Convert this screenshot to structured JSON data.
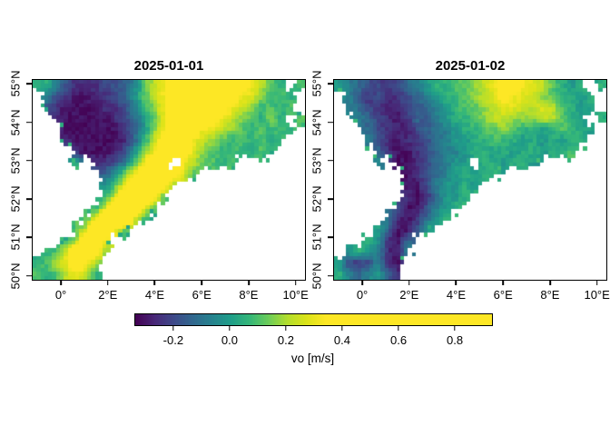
{
  "chart_data": {
    "type": "heatmap",
    "description": "Two daily raster maps of northward ocean current velocity over the southern North Sea with a shared viridis colorbar. Grid rows are strings, one char per cell, top row = 55.1N, left col = -1.2E; '.' = land / no data; letters map to m/s values via value_map.",
    "panels": [
      {
        "title": "2025-01-01",
        "grid_rows": [
          "ggecbbbccdehjlnnnnnnnmljhg.h",
          ".ecbaabbcdfhjlnnnnnnmlkighg.",
          ".cbaaaabbcegilnnnnnmljighgh.",
          "..baaaaabcdfhkmnnnmljihgig.h",
          "...aaaaaabdfilnnmlkjihghghg.",
          "...baaaaabdgjmnnljihghghgg..",
          "....baaabcfilnnmkihghgghg...",
          "....g.bbcehknn.ljhhgh.......",
          ".......dfilnnnmkh...........",
          ".......fhknnnmi.............",
          ".......gjnnnmh..............",
          "......gjnnnlh...............",
          ".....hknnnkg................",
          "....hjnnlh..................",
          "...ginnk....................",
          ".ghknnmi....................",
          "ghjlnli.....................",
          "hghjljg....................."
        ]
      },
      {
        "title": "2025-01-02",
        "grid_rows": [
          "fedccbcdefgghhijlmmlkjhgfg.g",
          ".edbcbbcdefgghijkmlkjihggfg.",
          ".edcbabccdefghhijkkjjkjhgfg.",
          "..edcbabdcefgghijjiiijjhgf.g",
          "...dcbbacddefgghhihggfghggf.",
          "...ecbabbcdeffgghggfgfgfgg..",
          "....dbaabcdeefggfgfggfggh...",
          "....f.aabcdeff.ggfggf.......",
          ".......abcdefgfgg...........",
          ".......aaceffgf.............",
          ".......babdffg..............",
          "......caacefg...............",
          ".....ebabdfg................",
          "....fdaacf..................",
          "...gfbad....................",
          ".fgfebae....................",
          "fcbceba.....................",
          "gedefdb....................."
        ]
      }
    ],
    "value_map": {
      "a": -0.31,
      "b": -0.25,
      "c": -0.19,
      "d": -0.13,
      "e": -0.07,
      "f": -0.01,
      "g": 0.05,
      "h": 0.11,
      "i": 0.17,
      "j": 0.23,
      "k": 0.28,
      "l": 0.32,
      "m": 0.45,
      "n": 0.75
    },
    "no_data_char": ".",
    "x": {
      "tick_labels": [
        "0°",
        "2°E",
        "4°E",
        "6°E",
        "8°E",
        "10°E"
      ],
      "values": [
        0,
        2,
        4,
        6,
        8,
        10
      ],
      "range": [
        -1.2,
        10.4
      ]
    },
    "y": {
      "tick_labels": [
        "50°N",
        "51°N",
        "52°N",
        "53°N",
        "54°N",
        "55°N"
      ],
      "values": [
        50,
        51,
        52,
        53,
        54,
        55
      ],
      "range": [
        49.9,
        55.1
      ]
    },
    "colorbar": {
      "label": "vo [m/s]",
      "ticks": [
        -0.2,
        0.0,
        0.2,
        0.4,
        0.6,
        0.8
      ],
      "tick_labels": [
        "-0.2",
        "0.0",
        "0.2",
        "0.4",
        "0.6",
        "0.8"
      ],
      "range": [
        -0.335,
        0.932
      ],
      "clamp_yellow_above": 0.342,
      "viridis": [
        "#440154",
        "#482878",
        "#3e4989",
        "#31688e",
        "#26828e",
        "#1f9e89",
        "#35b779",
        "#6dcd59",
        "#b4de2c",
        "#dce319",
        "#fde725"
      ]
    }
  }
}
